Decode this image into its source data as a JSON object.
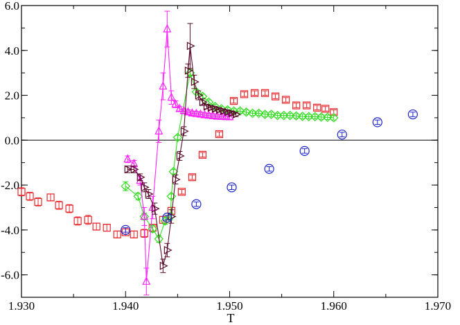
{
  "chart_data": {
    "type": "scatter",
    "title": "",
    "xlabel": "T",
    "ylabel": "",
    "xlim": [
      1.93,
      1.97
    ],
    "ylim": [
      -7.0,
      6.0
    ],
    "x_ticks": [
      1.93,
      1.94,
      1.95,
      1.96,
      1.97
    ],
    "x_tick_labels": [
      "1.930",
      "1.940",
      "1.950",
      "1.960",
      "1.970"
    ],
    "y_ticks": [
      -6.0,
      -4.0,
      -2.0,
      0.0,
      2.0,
      4.0,
      6.0
    ],
    "y_tick_labels": [
      "-6.0",
      "-4.0",
      "-2.0",
      "0.0",
      "2.0",
      "4.0",
      "6.0"
    ],
    "zero_line": 0.0,
    "series": [
      {
        "name": "red squares",
        "color": "#e8262a",
        "marker": "square",
        "line": false,
        "points": [
          [
            1.93,
            -2.3,
            0.18
          ],
          [
            1.9308,
            -2.5,
            0.18
          ],
          [
            1.9316,
            -2.75,
            0.18
          ],
          [
            1.9328,
            -2.55,
            0.15
          ],
          [
            1.9336,
            -2.9,
            0.18
          ],
          [
            1.9346,
            -3.05,
            0.18
          ],
          [
            1.9354,
            -3.6,
            0.18
          ],
          [
            1.9364,
            -3.55,
            0.2
          ],
          [
            1.9372,
            -3.85,
            0.15
          ],
          [
            1.9382,
            -3.9,
            0.15
          ],
          [
            1.9392,
            -4.2,
            0.15
          ],
          [
            1.94,
            -4.1,
            0.15
          ],
          [
            1.9408,
            -4.2,
            0.15
          ],
          [
            1.9418,
            -4.15,
            0.18
          ],
          [
            1.9426,
            -3.9,
            0.15
          ],
          [
            1.9436,
            -3.55,
            0.15
          ],
          [
            1.9444,
            -3.15,
            0.15
          ],
          [
            1.9454,
            -2.3,
            0.1
          ],
          [
            1.9464,
            -1.65,
            0.1
          ],
          [
            1.9474,
            -0.65,
            0.1
          ],
          [
            1.949,
            0.27,
            0.1
          ],
          [
            1.9504,
            1.75,
            0.1
          ],
          [
            1.9514,
            2.05,
            0.1
          ],
          [
            1.9524,
            2.1,
            0.1
          ],
          [
            1.9534,
            2.1,
            0.1
          ],
          [
            1.9544,
            1.95,
            0.1
          ],
          [
            1.9554,
            1.8,
            0.1
          ],
          [
            1.9564,
            1.55,
            0.1
          ],
          [
            1.9574,
            1.55,
            0.1
          ],
          [
            1.9584,
            1.45,
            0.1
          ],
          [
            1.9592,
            1.4,
            0.1
          ],
          [
            1.96,
            1.25,
            0.1
          ]
        ]
      },
      {
        "name": "green diamonds",
        "color": "#33dd22",
        "marker": "diamond",
        "line": true,
        "points": [
          [
            1.94,
            -2.05,
            0.2
          ],
          [
            1.9412,
            -2.5,
            0.15
          ],
          [
            1.9418,
            -3.4,
            0.15
          ],
          [
            1.9426,
            -3.95,
            0.15
          ],
          [
            1.9432,
            -4.4,
            0.15
          ],
          [
            1.9438,
            -3.6,
            0.15
          ],
          [
            1.9443,
            -3.4,
            0.15
          ],
          [
            1.9444,
            -2.5,
            0.1
          ],
          [
            1.9446,
            -1.4,
            0.1
          ],
          [
            1.945,
            0.12,
            0.1
          ],
          [
            1.9462,
            3.0,
            0.15
          ],
          [
            1.9468,
            2.15,
            0.1
          ],
          [
            1.9474,
            1.95,
            0.1
          ],
          [
            1.948,
            1.7,
            0.1
          ],
          [
            1.9486,
            1.5,
            0.1
          ],
          [
            1.9492,
            1.4,
            0.1
          ],
          [
            1.9498,
            1.35,
            0.1
          ],
          [
            1.9504,
            1.3,
            0.1
          ],
          [
            1.951,
            1.3,
            0.1
          ],
          [
            1.9516,
            1.25,
            0.1
          ],
          [
            1.9522,
            1.2,
            0.1
          ],
          [
            1.9528,
            1.2,
            0.1
          ],
          [
            1.9534,
            1.15,
            0.1
          ],
          [
            1.954,
            1.15,
            0.1
          ],
          [
            1.9546,
            1.1,
            0.1
          ],
          [
            1.9552,
            1.1,
            0.1
          ],
          [
            1.9558,
            1.1,
            0.1
          ],
          [
            1.9564,
            1.08,
            0.1
          ],
          [
            1.957,
            1.06,
            0.1
          ],
          [
            1.9576,
            1.05,
            0.1
          ],
          [
            1.9582,
            1.05,
            0.1
          ],
          [
            1.9588,
            1.03,
            0.1
          ],
          [
            1.9594,
            1.02,
            0.1
          ],
          [
            1.96,
            1.0,
            0.1
          ]
        ]
      },
      {
        "name": "magenta triangles",
        "color": "#ff22ff",
        "marker": "triangle-up",
        "line": true,
        "points": [
          [
            1.9402,
            -0.85,
            0.15
          ],
          [
            1.9408,
            -1.05,
            0.15
          ],
          [
            1.9414,
            -1.8,
            0.2
          ],
          [
            1.9418,
            -3.4,
            0.4
          ],
          [
            1.942,
            -6.3,
            0.6
          ],
          [
            1.9426,
            -3.0,
            0.5
          ],
          [
            1.9432,
            0.4,
            0.5
          ],
          [
            1.9436,
            2.4,
            0.6
          ],
          [
            1.944,
            4.95,
            0.8
          ],
          [
            1.9444,
            1.9,
            0.3
          ],
          [
            1.9448,
            1.6,
            0.15
          ],
          [
            1.9452,
            1.4,
            0.1
          ],
          [
            1.9456,
            1.3,
            0.1
          ],
          [
            1.946,
            1.25,
            0.1
          ],
          [
            1.9464,
            1.2,
            0.1
          ],
          [
            1.9468,
            1.18,
            0.1
          ],
          [
            1.9472,
            1.15,
            0.1
          ],
          [
            1.9476,
            1.12,
            0.1
          ],
          [
            1.948,
            1.1,
            0.1
          ],
          [
            1.9484,
            1.08,
            0.1
          ],
          [
            1.9488,
            1.06,
            0.1
          ],
          [
            1.9492,
            1.05,
            0.1
          ],
          [
            1.9496,
            1.04,
            0.1
          ],
          [
            1.95,
            1.03,
            0.1
          ]
        ]
      },
      {
        "name": "maroon right-triangles",
        "color": "#5a0a2a",
        "marker": "triangle-right",
        "line": true,
        "points": [
          [
            1.9402,
            -1.3,
            0.15
          ],
          [
            1.9408,
            -1.3,
            0.15
          ],
          [
            1.9414,
            -1.65,
            0.15
          ],
          [
            1.9418,
            -2.1,
            0.2
          ],
          [
            1.9422,
            -2.4,
            0.2
          ],
          [
            1.9428,
            -3.05,
            0.25
          ],
          [
            1.9436,
            -5.6,
            0.3
          ],
          [
            1.944,
            -4.9,
            0.3
          ],
          [
            1.9444,
            -3.4,
            0.3
          ],
          [
            1.9448,
            -1.75,
            0.2
          ],
          [
            1.9452,
            -0.7,
            0.2
          ],
          [
            1.9456,
            0.4,
            0.2
          ],
          [
            1.946,
            3.1,
            0.3
          ],
          [
            1.9462,
            4.2,
            1.0
          ],
          [
            1.9466,
            2.6,
            0.3
          ],
          [
            1.947,
            2.0,
            0.2
          ],
          [
            1.9474,
            1.7,
            0.15
          ],
          [
            1.9478,
            1.5,
            0.1
          ],
          [
            1.9482,
            1.45,
            0.1
          ],
          [
            1.9486,
            1.4,
            0.1
          ],
          [
            1.949,
            1.35,
            0.1
          ],
          [
            1.9494,
            1.3,
            0.1
          ],
          [
            1.9498,
            1.25,
            0.1
          ],
          [
            1.9502,
            1.2,
            0.1
          ],
          [
            1.9506,
            1.15,
            0.1
          ]
        ]
      },
      {
        "name": "blue circles",
        "color": "#1a22cc",
        "marker": "circle",
        "line": false,
        "points": [
          [
            1.94,
            -4.0,
            0.1
          ],
          [
            1.944,
            -3.45,
            0.1
          ],
          [
            1.9468,
            -2.85,
            0.1
          ],
          [
            1.9502,
            -2.1,
            0.1
          ],
          [
            1.9538,
            -1.28,
            0.1
          ],
          [
            1.9572,
            -0.48,
            0.1
          ],
          [
            1.9608,
            0.25,
            0.1
          ],
          [
            1.9642,
            0.8,
            0.1
          ],
          [
            1.9676,
            1.15,
            0.1
          ]
        ]
      }
    ]
  }
}
